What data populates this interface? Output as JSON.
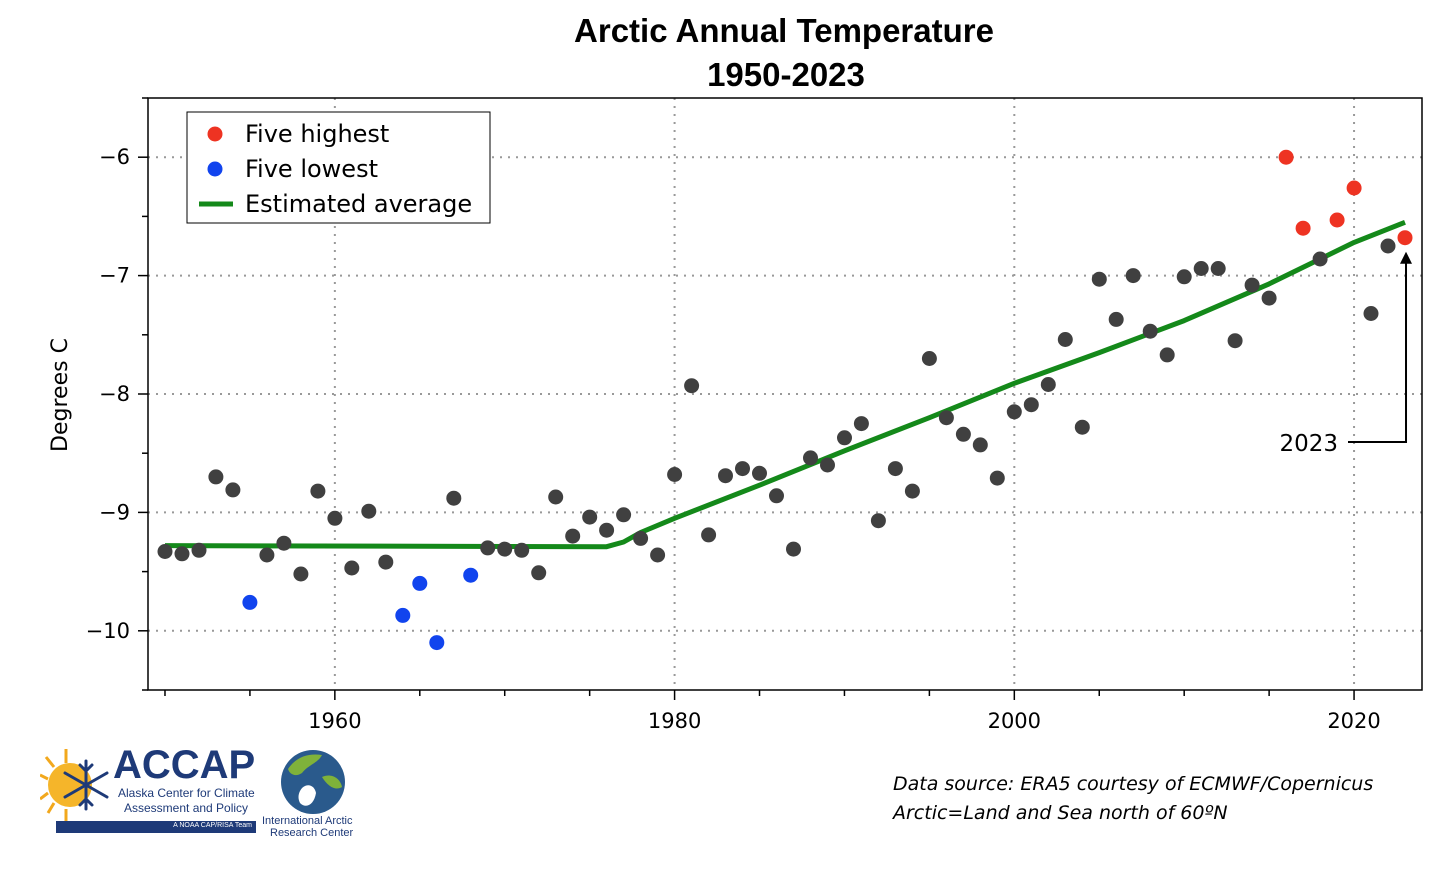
{
  "chart_data": {
    "type": "scatter",
    "title": "Arctic Annual Temperature",
    "subtitle": "1950-2023",
    "xlabel": "",
    "ylabel": "Degrees C",
    "xlim": [
      1949,
      2024
    ],
    "ylim": [
      -10.5,
      -5.5
    ],
    "x_ticks": [
      1960,
      1980,
      2000,
      2020
    ],
    "y_ticks": [
      -6,
      -7,
      -8,
      -9,
      -10
    ],
    "x_tick_labels": [
      "1960",
      "1980",
      "2000",
      "2020"
    ],
    "y_tick_labels": [
      "−6",
      "−7",
      "−8",
      "−9",
      "−10"
    ],
    "grid": true,
    "legend_position": "top-left",
    "legend": [
      {
        "label": "Five highest",
        "marker": "dot",
        "color": "#ee3322"
      },
      {
        "label": "Five lowest",
        "marker": "dot",
        "color": "#1144ee"
      },
      {
        "label": "Estimated average",
        "marker": "line",
        "color": "#14891a"
      }
    ],
    "colors": {
      "normal": "#404040",
      "highest": "#ee3322",
      "lowest": "#1144ee",
      "trend": "#14891a"
    },
    "series": [
      {
        "name": "",
        "category": "normal",
        "points": [
          [
            1950,
            -9.33
          ],
          [
            1951,
            -9.35
          ],
          [
            1952,
            -9.32
          ],
          [
            1953,
            -8.7
          ],
          [
            1954,
            -8.81
          ],
          [
            1956,
            -9.36
          ],
          [
            1957,
            -9.26
          ],
          [
            1958,
            -9.52
          ],
          [
            1959,
            -8.82
          ],
          [
            1960,
            -9.05
          ],
          [
            1961,
            -9.47
          ],
          [
            1962,
            -8.99
          ],
          [
            1963,
            -9.42
          ],
          [
            1967,
            -8.88
          ],
          [
            1969,
            -9.3
          ],
          [
            1970,
            -9.31
          ],
          [
            1971,
            -9.32
          ],
          [
            1972,
            -9.51
          ],
          [
            1973,
            -8.87
          ],
          [
            1974,
            -9.2
          ],
          [
            1975,
            -9.04
          ],
          [
            1976,
            -9.15
          ],
          [
            1977,
            -9.02
          ],
          [
            1978,
            -9.22
          ],
          [
            1979,
            -9.36
          ],
          [
            1980,
            -8.68
          ],
          [
            1981,
            -7.93
          ],
          [
            1982,
            -9.19
          ],
          [
            1983,
            -8.69
          ],
          [
            1984,
            -8.63
          ],
          [
            1985,
            -8.67
          ],
          [
            1986,
            -8.86
          ],
          [
            1987,
            -9.31
          ],
          [
            1988,
            -8.54
          ],
          [
            1989,
            -8.6
          ],
          [
            1990,
            -8.37
          ],
          [
            1991,
            -8.25
          ],
          [
            1992,
            -9.07
          ],
          [
            1993,
            -8.63
          ],
          [
            1994,
            -8.82
          ],
          [
            1995,
            -7.7
          ],
          [
            1996,
            -8.2
          ],
          [
            1997,
            -8.34
          ],
          [
            1998,
            -8.43
          ],
          [
            1999,
            -8.71
          ],
          [
            2000,
            -8.15
          ],
          [
            2001,
            -8.09
          ],
          [
            2002,
            -7.92
          ],
          [
            2003,
            -7.54
          ],
          [
            2004,
            -8.28
          ],
          [
            2005,
            -7.03
          ],
          [
            2006,
            -7.37
          ],
          [
            2007,
            -7.0
          ],
          [
            2008,
            -7.47
          ],
          [
            2009,
            -7.67
          ],
          [
            2010,
            -7.01
          ],
          [
            2011,
            -6.94
          ],
          [
            2012,
            -6.94
          ],
          [
            2013,
            -7.55
          ],
          [
            2014,
            -7.08
          ],
          [
            2015,
            -7.19
          ],
          [
            2018,
            -6.86
          ],
          [
            2021,
            -7.32
          ],
          [
            2022,
            -6.75
          ]
        ]
      },
      {
        "name": "Five highest",
        "category": "highest",
        "points": [
          [
            2016,
            -6.0
          ],
          [
            2017,
            -6.6
          ],
          [
            2019,
            -6.53
          ],
          [
            2020,
            -6.26
          ],
          [
            2023,
            -6.68
          ]
        ]
      },
      {
        "name": "Five lowest",
        "category": "lowest",
        "points": [
          [
            1955,
            -9.76
          ],
          [
            1964,
            -9.87
          ],
          [
            1965,
            -9.6
          ],
          [
            1966,
            -10.1
          ],
          [
            1968,
            -9.53
          ]
        ]
      }
    ],
    "trend": {
      "name": "Estimated average",
      "points": [
        [
          1950,
          -9.28
        ],
        [
          1976,
          -9.29
        ],
        [
          1977,
          -9.25
        ],
        [
          1978,
          -9.17
        ],
        [
          1980,
          -9.05
        ],
        [
          1985,
          -8.77
        ],
        [
          1990,
          -8.48
        ],
        [
          1995,
          -8.2
        ],
        [
          2000,
          -7.91
        ],
        [
          2005,
          -7.65
        ],
        [
          2010,
          -7.38
        ],
        [
          2015,
          -7.07
        ],
        [
          2020,
          -6.72
        ],
        [
          2023,
          -6.55
        ]
      ]
    },
    "annotation": {
      "text": "2023",
      "target": [
        2023,
        -6.68
      ]
    },
    "source_note": [
      "Data source: ERA5 courtesy of ECMWF/Copernicus",
      "Arctic=Land and Sea north of 60ºN"
    ]
  },
  "logos": {
    "accap": {
      "name": "ACCAP",
      "line1": "Alaska Center for Climate",
      "line2": "Assessment and Policy",
      "tagline": "A NOAA CAP/RISA Team"
    },
    "iarc": {
      "line1": "International Arctic",
      "line2": "Research Center"
    }
  }
}
